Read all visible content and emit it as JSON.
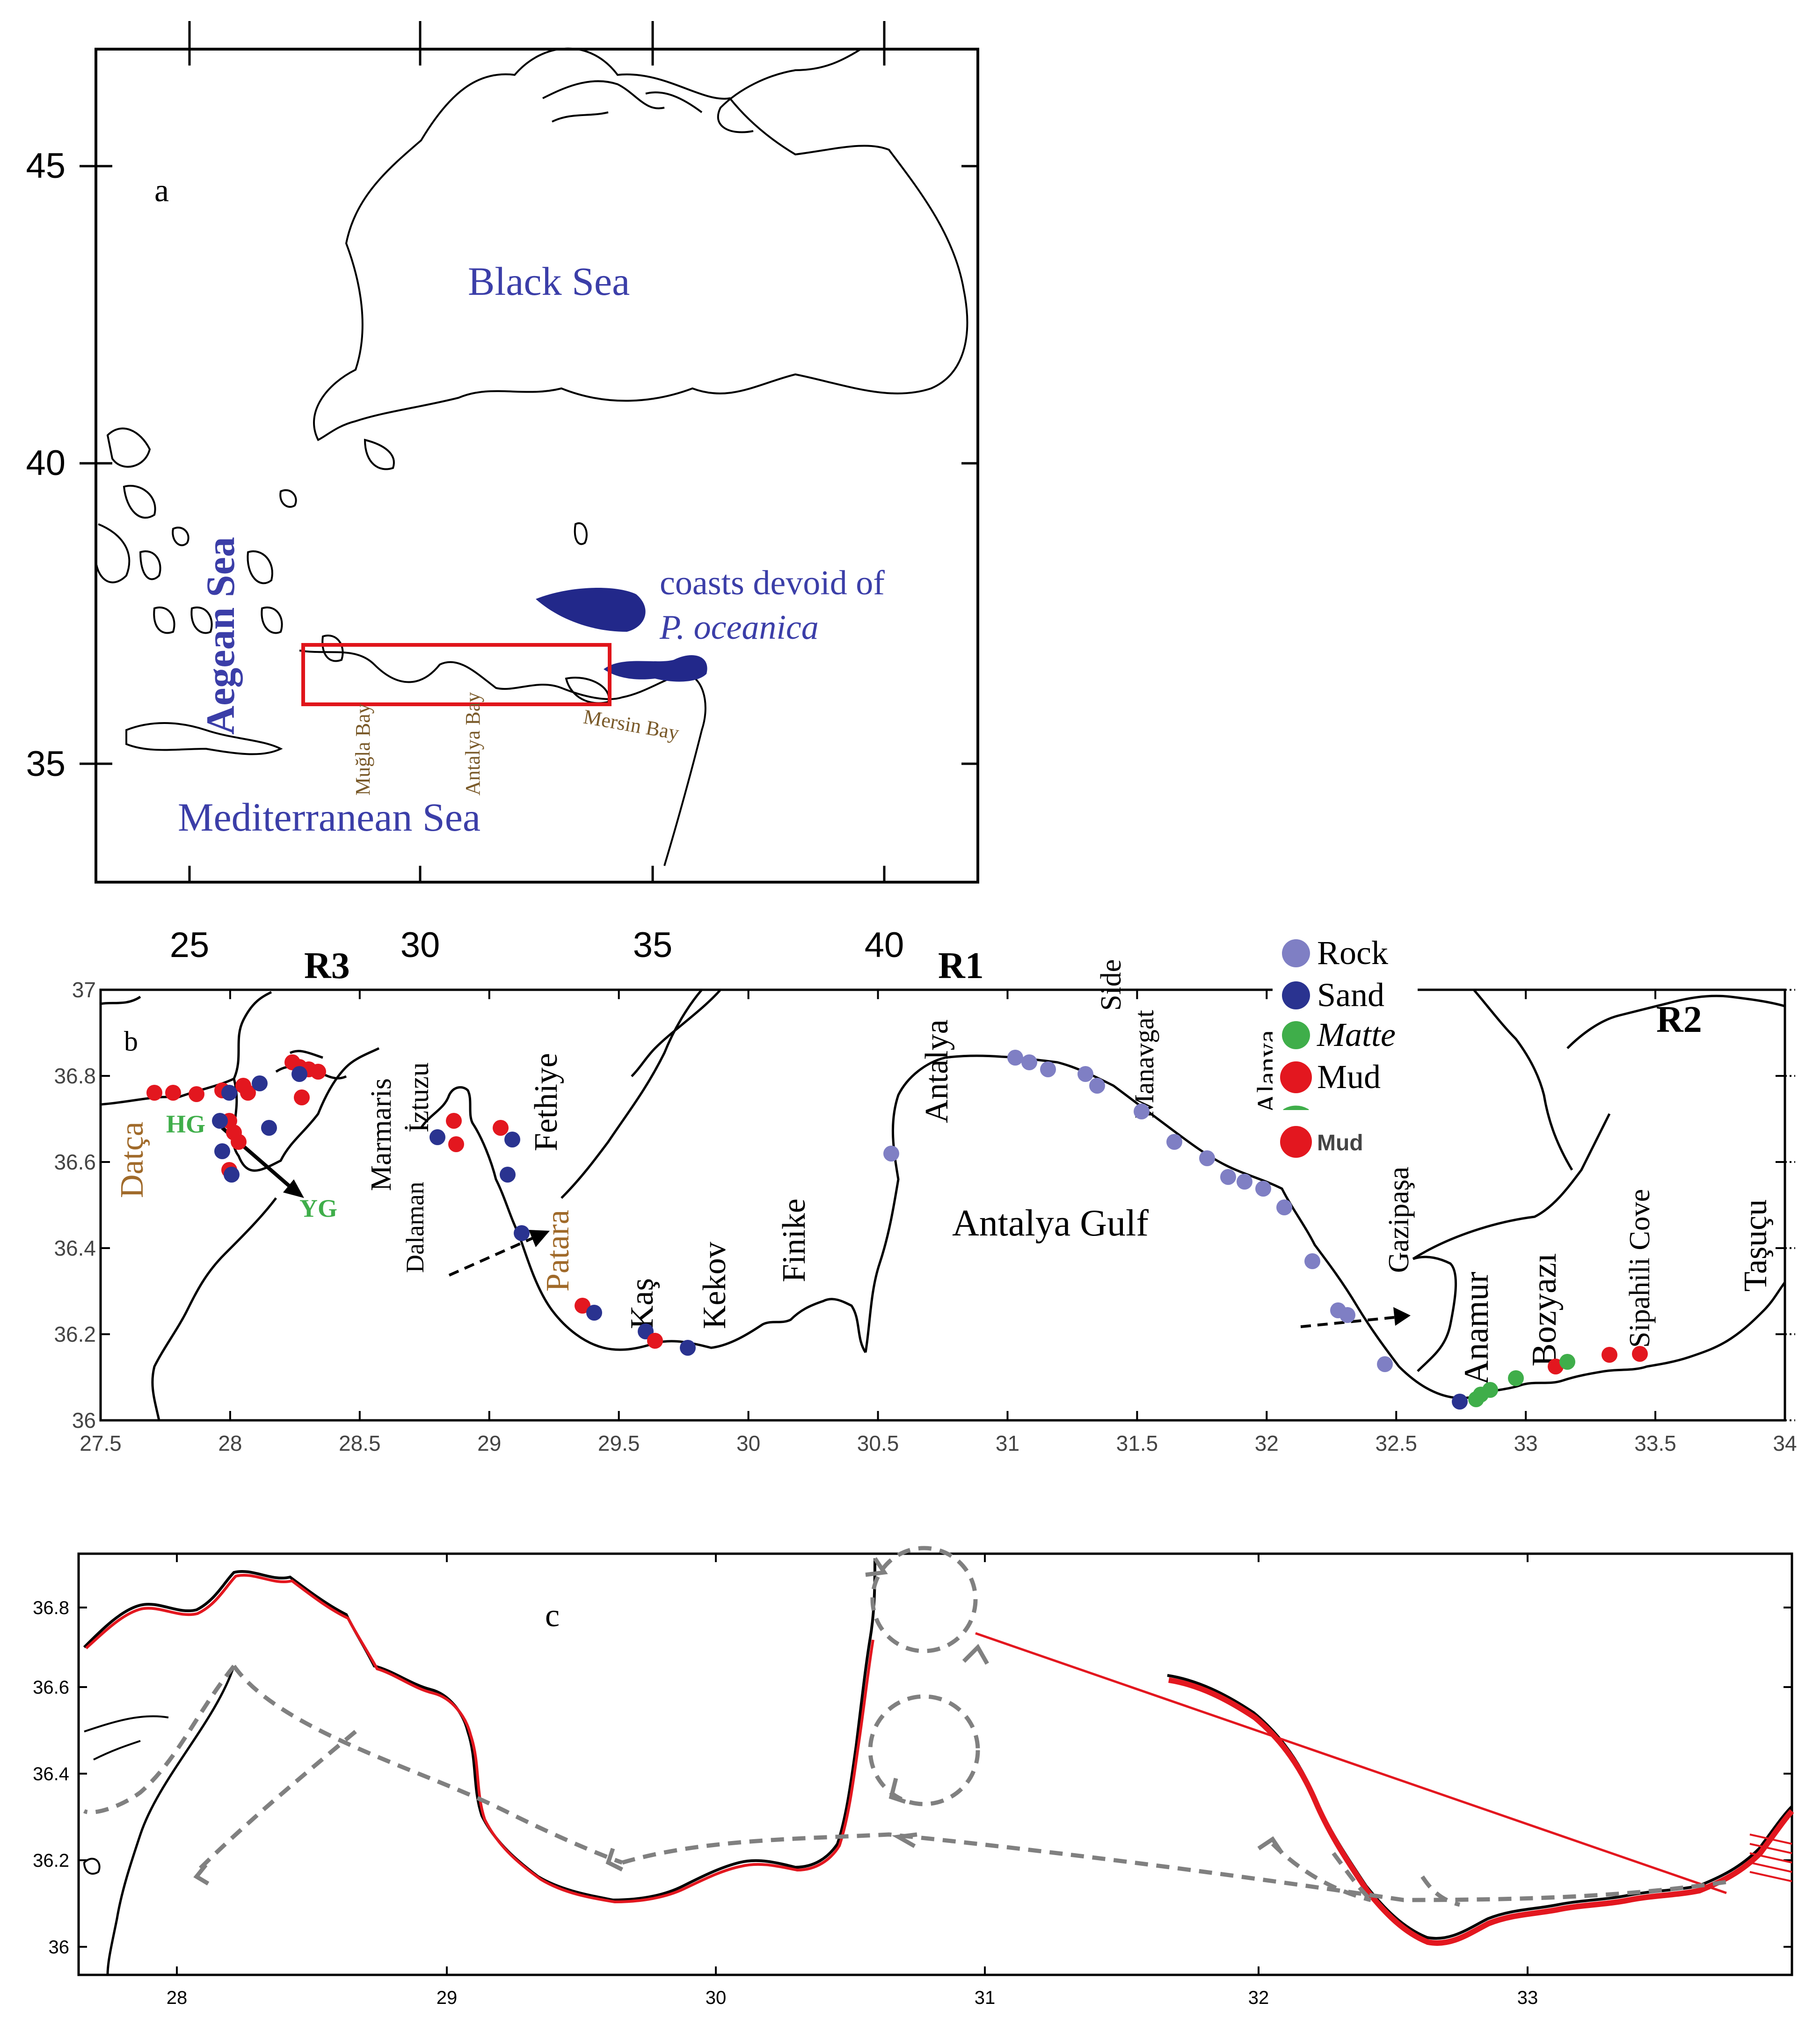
{
  "panel_a": {
    "letter": "a",
    "y_ticks": [
      "45",
      "40",
      "35"
    ],
    "x_ticks": [
      "25",
      "30",
      "35",
      "40"
    ],
    "labels": {
      "black_sea": "Black Sea",
      "aegean_sea": "Aegean Sea",
      "mediterranean_sea": "Mediterranean Sea",
      "devoid_line1": "coasts devoid of",
      "devoid_line2": "P. oceanica",
      "mugla_bay": "Muğla Bay",
      "antalya_bay": "Antalya Bay",
      "mersin_bay": "Mersin Bay"
    },
    "colors": {
      "label_blue": "#3b3ea8",
      "patch": "#22288a",
      "box": "#e0151b"
    }
  },
  "panel_b": {
    "letter": "b",
    "y_ticks": [
      "37",
      "36.8",
      "36.6",
      "36.4",
      "36.2",
      "36"
    ],
    "x_ticks": [
      "27.5",
      "28",
      "28.5",
      "29",
      "29.5",
      "30",
      "30.5",
      "31",
      "31.5",
      "32",
      "32.5",
      "33",
      "33.5",
      "34"
    ],
    "regions": {
      "r3": "R3",
      "r1": "R1",
      "r2": "R2"
    },
    "places": {
      "datca": "Datça",
      "hg": "HG",
      "yg": "YG",
      "marmaris": "Marmaris",
      "dalaman": "Dalaman",
      "iztuzu": "İztuzu",
      "fethiye": "Fethiye",
      "patara": "Patara",
      "kas": "Kaş",
      "kekov": "Kekov",
      "finike": "Finike",
      "antalya": "Antalya",
      "side": "Side",
      "manavgat": "Manavgat",
      "alanya": "Alanya",
      "gazipasa": "Gazipaşa",
      "anamur": "Anamur",
      "bozyazi": "Bozyazı",
      "sipahili": "Sipahili Cove",
      "tasucu": "Taşuçu",
      "antalya_gulf": "Antalya Gulf"
    },
    "legend": [
      {
        "label": "Rock",
        "color": "#7f7fc4"
      },
      {
        "label": "Sand",
        "color": "#2a3390"
      },
      {
        "label": "Matte",
        "color": "#3fae4a"
      },
      {
        "label": "Mud",
        "color": "#e3171f"
      }
    ],
    "legend_extra": "Mud"
  },
  "panel_c": {
    "letter": "c",
    "y_ticks": [
      "36.8",
      "36.6",
      "36.4",
      "36.2",
      "36"
    ],
    "x_ticks": [
      "28",
      "29",
      "30",
      "31",
      "32",
      "33"
    ]
  }
}
